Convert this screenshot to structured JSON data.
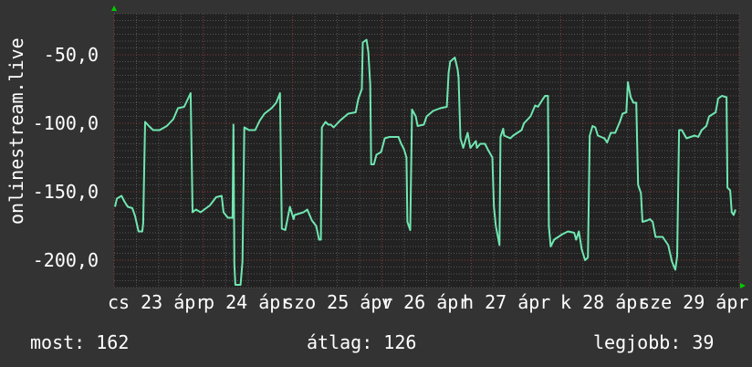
{
  "chart_data": {
    "type": "line",
    "ylabel": "onlinestream.live",
    "ylim": [
      -220,
      -20
    ],
    "xlim": [
      "04-23 00:00",
      "04-30 00:00"
    ],
    "y_ticks": [
      {
        "value": -50,
        "label": "-50,0"
      },
      {
        "value": -100,
        "label": "-100,0"
      },
      {
        "value": -150,
        "label": "-150,0"
      },
      {
        "value": -200,
        "label": "-200,0"
      }
    ],
    "x_tick_labels": [
      "cs 23 ápr",
      "p 24 ápr",
      "szo 25 ápr",
      "v 26 ápr",
      "h 27 ápr",
      "k 28 ápr",
      "sze 29 ápr"
    ],
    "grid": true,
    "colors": {
      "background": "#333333",
      "plot_background": "#222222",
      "line": "#6fe6b0",
      "grid_minor": "#555555",
      "grid_major": "#8a3a3a",
      "arrow": "#00cc00"
    },
    "series": [
      {
        "points": [
          [
            "04-23 00:15",
            -161
          ],
          [
            "04-23 00:45",
            -155
          ],
          [
            "04-23 02:00",
            -153
          ],
          [
            "04-23 02:45",
            -157
          ],
          [
            "04-23 03:40",
            -161
          ],
          [
            "04-23 04:55",
            -162
          ],
          [
            "04-23 05:40",
            -168
          ],
          [
            "04-23 06:35",
            -179
          ],
          [
            "04-23 07:35",
            -179
          ],
          [
            "04-23 07:50",
            -173
          ],
          [
            "04-23 08:20",
            -99
          ],
          [
            "04-23 09:20",
            -102
          ],
          [
            "04-23 10:30",
            -105
          ],
          [
            "04-23 12:15",
            -105
          ],
          [
            "04-23 14:10",
            -102
          ],
          [
            "04-23 15:55",
            -97
          ],
          [
            "04-23 17:10",
            -89
          ],
          [
            "04-23 18:50",
            -88
          ],
          [
            "04-23 20:35",
            -78
          ],
          [
            "04-23 21:05",
            -165
          ],
          [
            "04-23 22:00",
            -163
          ],
          [
            "04-23 23:15",
            -165
          ],
          [
            "04-24 01:45",
            -160
          ],
          [
            "04-24 03:25",
            -154
          ],
          [
            "04-24 04:55",
            -153
          ],
          [
            "04-24 05:25",
            -165
          ],
          [
            "04-24 06:35",
            -169
          ],
          [
            "04-24 07:50",
            -169
          ],
          [
            "04-24 08:05",
            -101
          ],
          [
            "04-24 08:20",
            -203
          ],
          [
            "04-24 08:35",
            -218
          ],
          [
            "04-24 10:00",
            -218
          ],
          [
            "04-24 10:30",
            -201
          ],
          [
            "04-24 11:00",
            -103
          ],
          [
            "04-24 12:15",
            -105
          ],
          [
            "04-24 13:55",
            -105
          ],
          [
            "04-24 15:10",
            -98
          ],
          [
            "04-24 16:25",
            -93
          ],
          [
            "04-24 18:20",
            -89
          ],
          [
            "04-24 19:35",
            -85
          ],
          [
            "04-24 20:35",
            -78
          ],
          [
            "04-24 21:05",
            -177
          ],
          [
            "04-24 22:00",
            -178
          ],
          [
            "04-24 23:15",
            -161
          ],
          [
            "04-25 00:15",
            -170
          ],
          [
            "04-25 00:30",
            -167
          ],
          [
            "04-25 02:55",
            -165
          ],
          [
            "04-25 03:55",
            -163
          ],
          [
            "04-25 05:10",
            -171
          ],
          [
            "04-25 06:20",
            -175
          ],
          [
            "04-25 07:05",
            -185
          ],
          [
            "04-25 07:35",
            -185
          ],
          [
            "04-25 07:50",
            -103
          ],
          [
            "04-25 08:50",
            -99
          ],
          [
            "04-25 09:35",
            -101
          ],
          [
            "04-25 10:15",
            -101
          ],
          [
            "04-25 11:00",
            -103
          ],
          [
            "04-25 12:45",
            -98
          ],
          [
            "04-25 14:55",
            -93
          ],
          [
            "04-25 16:55",
            -92
          ],
          [
            "04-25 17:40",
            -82
          ],
          [
            "04-25 18:35",
            -75
          ],
          [
            "04-25 18:50",
            -41
          ],
          [
            "04-25 19:50",
            -39
          ],
          [
            "04-25 20:20",
            -48
          ],
          [
            "04-25 20:50",
            -72
          ],
          [
            "04-25 21:05",
            -130
          ],
          [
            "04-25 21:50",
            -130
          ],
          [
            "04-25 22:30",
            -123
          ],
          [
            "04-25 23:45",
            -121
          ],
          [
            "04-26 00:45",
            -111
          ],
          [
            "04-26 02:00",
            -110
          ],
          [
            "04-26 04:25",
            -110
          ],
          [
            "04-26 05:10",
            -115
          ],
          [
            "04-26 05:55",
            -119
          ],
          [
            "04-26 06:35",
            -125
          ],
          [
            "04-26 06:50",
            -172
          ],
          [
            "04-26 07:35",
            -178
          ],
          [
            "04-26 08:05",
            -90
          ],
          [
            "04-26 09:05",
            -95
          ],
          [
            "04-26 09:35",
            -102
          ],
          [
            "04-26 11:15",
            -101
          ],
          [
            "04-26 12:00",
            -95
          ],
          [
            "04-26 13:45",
            -91
          ],
          [
            "04-26 15:40",
            -89
          ],
          [
            "04-26 17:25",
            -88
          ],
          [
            "04-26 17:55",
            -63
          ],
          [
            "04-26 18:20",
            -55
          ],
          [
            "04-26 19:35",
            -52
          ],
          [
            "04-26 20:20",
            -61
          ],
          [
            "04-26 20:35",
            -67
          ],
          [
            "04-26 21:05",
            -111
          ],
          [
            "04-26 21:50",
            -118
          ],
          [
            "04-26 23:00",
            -107
          ],
          [
            "04-26 23:45",
            -118
          ],
          [
            "04-27 01:15",
            -113
          ],
          [
            "04-27 01:30",
            -118
          ],
          [
            "04-27 02:25",
            -115
          ],
          [
            "04-27 03:40",
            -115
          ],
          [
            "04-27 04:25",
            -119
          ],
          [
            "04-27 05:40",
            -125
          ],
          [
            "04-27 06:05",
            -161
          ],
          [
            "04-27 06:35",
            -175
          ],
          [
            "04-27 07:35",
            -189
          ],
          [
            "04-27 07:50",
            -110
          ],
          [
            "04-27 08:35",
            -104
          ],
          [
            "04-27 08:50",
            -109
          ],
          [
            "04-27 10:30",
            -111
          ],
          [
            "04-27 11:15",
            -109
          ],
          [
            "04-27 13:30",
            -105
          ],
          [
            "04-27 14:10",
            -100
          ],
          [
            "04-27 15:55",
            -95
          ],
          [
            "04-27 17:10",
            -87
          ],
          [
            "04-27 17:55",
            -88
          ],
          [
            "04-27 19:05",
            -83
          ],
          [
            "04-27 19:50",
            -80
          ],
          [
            "04-27 20:35",
            -80
          ],
          [
            "04-27 20:50",
            -175
          ],
          [
            "04-27 21:20",
            -190
          ],
          [
            "04-27 22:15",
            -185
          ],
          [
            "04-28 00:30",
            -181
          ],
          [
            "04-28 02:00",
            -179
          ],
          [
            "04-28 03:40",
            -180
          ],
          [
            "04-28 04:10",
            -185
          ],
          [
            "04-28 04:55",
            -179
          ],
          [
            "04-28 05:40",
            -192
          ],
          [
            "04-28 06:35",
            -200
          ],
          [
            "04-28 07:20",
            -198
          ],
          [
            "04-28 07:50",
            -109
          ],
          [
            "04-28 08:35",
            -102
          ],
          [
            "04-28 09:20",
            -103
          ],
          [
            "04-28 10:00",
            -109
          ],
          [
            "04-28 11:45",
            -111
          ],
          [
            "04-28 12:30",
            -114
          ],
          [
            "04-28 13:30",
            -107
          ],
          [
            "04-28 14:40",
            -107
          ],
          [
            "04-28 15:55",
            -99
          ],
          [
            "04-28 16:40",
            -93
          ],
          [
            "04-28 17:40",
            -92
          ],
          [
            "04-28 18:05",
            -70
          ],
          [
            "04-28 18:50",
            -81
          ],
          [
            "04-28 19:35",
            -85
          ],
          [
            "04-28 20:20",
            -85
          ],
          [
            "04-28 20:50",
            -145
          ],
          [
            "04-28 21:35",
            -151
          ],
          [
            "04-28 22:00",
            -172
          ],
          [
            "04-28 23:15",
            -171
          ],
          [
            "04-29 00:00",
            -170
          ],
          [
            "04-29 00:45",
            -172
          ],
          [
            "04-29 01:30",
            -183
          ],
          [
            "04-29 03:25",
            -183
          ],
          [
            "04-29 04:55",
            -189
          ],
          [
            "04-29 05:55",
            -201
          ],
          [
            "04-29 06:50",
            -207
          ],
          [
            "04-29 07:20",
            -197
          ],
          [
            "04-29 07:50",
            -105
          ],
          [
            "04-29 08:35",
            -105
          ],
          [
            "04-29 09:50",
            -111
          ],
          [
            "04-29 12:00",
            -109
          ],
          [
            "04-29 13:00",
            -110
          ],
          [
            "04-29 13:55",
            -105
          ],
          [
            "04-29 15:10",
            -102
          ],
          [
            "04-29 15:55",
            -95
          ],
          [
            "04-29 17:40",
            -92
          ],
          [
            "04-29 18:20",
            -82
          ],
          [
            "04-29 19:20",
            -80
          ],
          [
            "04-29 20:35",
            -81
          ],
          [
            "04-29 20:50",
            -147
          ],
          [
            "04-29 21:35",
            -149
          ],
          [
            "04-29 22:00",
            -165
          ],
          [
            "04-29 22:30",
            -167
          ],
          [
            "04-29 23:00",
            -163
          ]
        ]
      }
    ],
    "legend": {
      "current": "most: 162",
      "average": "átlag: 126",
      "max": "legjobb: 39"
    }
  }
}
